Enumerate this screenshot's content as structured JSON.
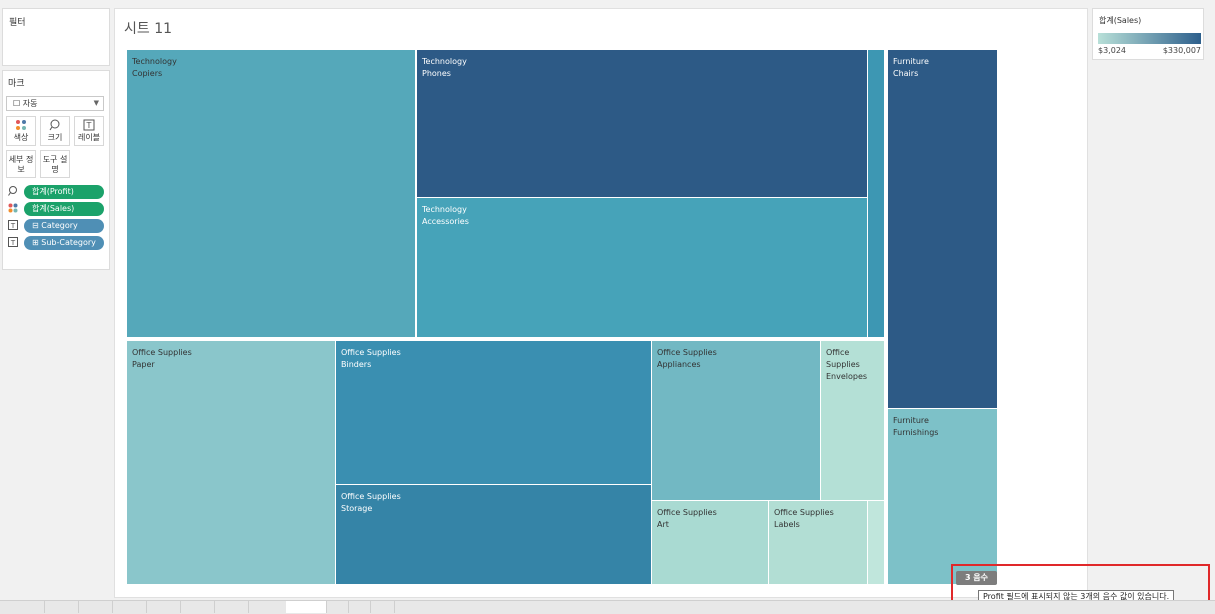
{
  "filters": {
    "title": "필터"
  },
  "marks": {
    "title": "마크",
    "mark_type": "자동",
    "buttons": {
      "color": "색상",
      "size": "크기",
      "label": "레이블",
      "detail": "세부 정보",
      "tooltip": "도구 설명"
    },
    "pills": [
      {
        "icon": "size-icon",
        "label": "합계(Profit)",
        "color": "#1ba26a"
      },
      {
        "icon": "color-icon",
        "label": "합계(Sales)",
        "color": "#1ba26a"
      },
      {
        "icon": "label-icon",
        "label": "⊟ Category",
        "color": "#4f8fb5"
      },
      {
        "icon": "label-icon",
        "label": "⊞ Sub-Category",
        "color": "#4f8fb5"
      }
    ]
  },
  "sheet": {
    "title": "시트 11"
  },
  "treemap": {
    "tiles": [
      {
        "category": "Technology",
        "sub": "Copiers",
        "color": "#55a8ba"
      },
      {
        "category": "Technology",
        "sub": "Phones",
        "color": "#2d5a86"
      },
      {
        "category": "Technology",
        "sub": "Accessories",
        "color": "#46a3b9"
      },
      {
        "category": "Furniture",
        "sub": "Chairs",
        "color": "#2d5a86"
      },
      {
        "category": "Furniture",
        "sub": "Furnishings",
        "color": "#7dc1c8"
      },
      {
        "category": "Office Supplies",
        "sub": "Paper",
        "color": "#8ac6cb"
      },
      {
        "category": "Office Supplies",
        "sub": "Binders",
        "color": "#3a8fb1"
      },
      {
        "category": "Office Supplies",
        "sub": "Storage",
        "color": "#3584a7"
      },
      {
        "category": "Office Supplies",
        "sub": "Appliances",
        "color": "#72b8c3"
      },
      {
        "category": "Office",
        "sub": "Supplies Envelopes",
        "color": "#b4e0d6"
      },
      {
        "category": "Office Supplies",
        "sub": "Art",
        "color": "#a9dad2"
      },
      {
        "category": "Office Supplies",
        "sub": "Labels",
        "color": "#b2ded4"
      }
    ]
  },
  "legend": {
    "title": "합계(Sales)",
    "min": "$3,024",
    "max": "$330,007",
    "color_low": "#b8e0d8",
    "color_high": "#2d5f8c"
  },
  "nulls": {
    "badge": "3 음수",
    "tooltip": "Profit 필드에 표시되지 않는 3개의 음수 값이 있습니다."
  }
}
